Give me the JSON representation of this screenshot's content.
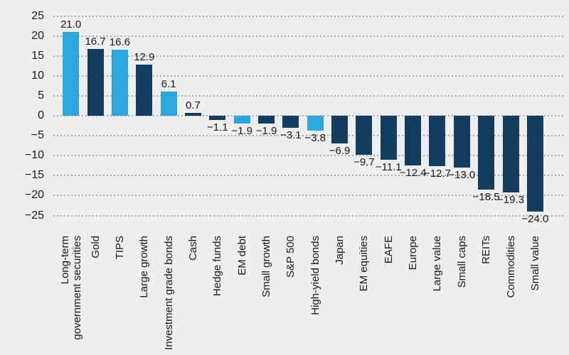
{
  "page": {
    "background_color": "#EEEEEE",
    "text_color": "#1A1A1A",
    "gridline_color": "#AAAAAA"
  },
  "chart_data": {
    "type": "bar",
    "title": "",
    "xlabel": "",
    "ylabel": "",
    "categories": [
      "Long-term\ngovernment securities",
      "Gold",
      "TIPS",
      "Large growth",
      "Investment grade bonds",
      "Cash",
      "Hedge funds",
      "EM debt",
      "Small growth",
      "S&P 500",
      "High-yield bonds",
      "Japan",
      "EM equities",
      "EAFE",
      "Europe",
      "Large value",
      "Small caps",
      "REITs",
      "Commodities",
      "Small value"
    ],
    "values": [
      21.0,
      16.7,
      16.6,
      12.9,
      6.1,
      0.7,
      -1.1,
      -1.9,
      -1.9,
      -3.1,
      -3.8,
      -6.9,
      -9.7,
      -11.1,
      -12.4,
      -12.7,
      -13.0,
      -18.5,
      -19.3,
      -24.0
    ],
    "bar_colors": [
      "light",
      "dark",
      "light",
      "dark",
      "light",
      "dark",
      "dark",
      "light",
      "dark",
      "dark",
      "light",
      "dark",
      "dark",
      "dark",
      "dark",
      "dark",
      "dark",
      "dark",
      "dark",
      "dark"
    ],
    "palette": {
      "light": "#2BA7E0",
      "dark": "#123D5E"
    },
    "ylim": [
      -25,
      25
    ],
    "yticks": [
      25,
      20,
      15,
      10,
      5,
      0,
      -5,
      -10,
      -15,
      -20,
      -25
    ],
    "grid": "horizontal-dotted",
    "legend": "none",
    "value_label_format": "one-decimal",
    "category_label_rotation_deg": 90
  }
}
